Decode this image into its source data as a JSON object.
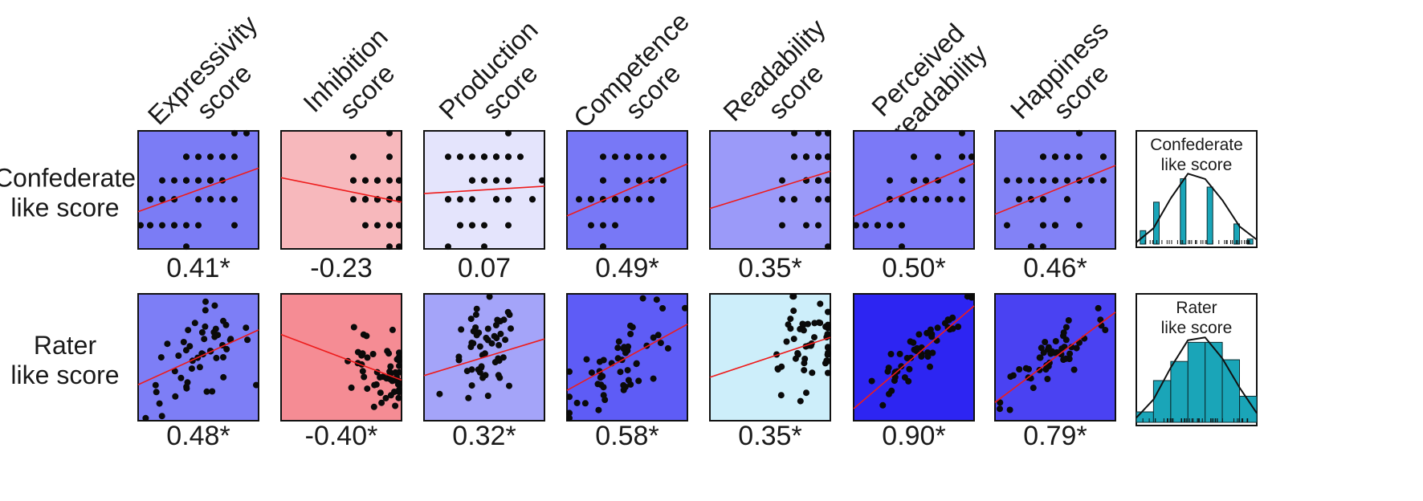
{
  "chart_data": {
    "type": "scatter",
    "title": "",
    "row_labels": [
      [
        "Confederate",
        "like score"
      ],
      [
        "Rater",
        "like score"
      ]
    ],
    "column_labels": [
      [
        "Expressivity",
        "score"
      ],
      [
        "Inhibition",
        "score"
      ],
      [
        "Production",
        "score"
      ],
      [
        "Competence",
        "score"
      ],
      [
        "Readability",
        "score"
      ],
      [
        "Perceived",
        "readability"
      ],
      [
        "Happiness",
        "score"
      ]
    ],
    "correlations": [
      [
        "0.41*",
        "-0.23",
        "0.07",
        "0.49*",
        "0.35*",
        "0.50*",
        "0.46*"
      ],
      [
        "0.48*",
        "-0.40*",
        "0.32*",
        "0.58*",
        "0.35*",
        "0.90*",
        "0.79*"
      ]
    ],
    "correlation_values": [
      [
        0.41,
        -0.23,
        0.07,
        0.49,
        0.35,
        0.5,
        0.46
      ],
      [
        0.48,
        -0.4,
        0.32,
        0.58,
        0.35,
        0.9,
        0.79
      ]
    ],
    "panel_colors": [
      [
        "#7b7cf5",
        "#f7b8bc",
        "#e4e4fc",
        "#7878f6",
        "#9b9af9",
        "#7b79f7",
        "#8282f6"
      ],
      [
        "#7d7ef6",
        "#f58c94",
        "#a4a4f9",
        "#5e5cf6",
        "#cdeefa",
        "#2d25f2",
        "#4a42f2"
      ]
    ],
    "fit_line_color": "#ee1c1c",
    "axis_range": [
      0,
      1
    ],
    "distributions": [
      {
        "title": [
          "Confederate",
          "like score"
        ],
        "bars": [
          0.16,
          0.5,
          0.0,
          0.78,
          0.0,
          0.68,
          0.0,
          0.24,
          0.06
        ],
        "curve": [
          0.02,
          0.18,
          0.52,
          0.8,
          0.74,
          0.5,
          0.2,
          0.05
        ]
      },
      {
        "title": [
          "Rater",
          "like score"
        ],
        "bars": [
          0.12,
          0.48,
          0.7,
          0.92,
          0.92,
          0.72,
          0.3
        ],
        "curve": [
          0.05,
          0.25,
          0.6,
          0.9,
          0.93,
          0.7,
          0.38,
          0.1
        ]
      }
    ]
  }
}
